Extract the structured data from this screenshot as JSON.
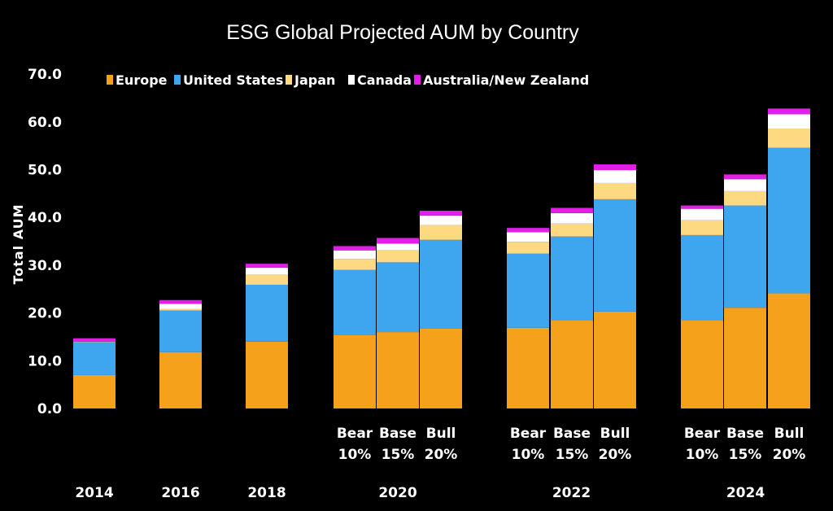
{
  "chart_data": {
    "type": "bar",
    "stacked": true,
    "title": "ESG Global Projected AUM by Country",
    "ylabel": "Total AUM",
    "ylim": [
      0,
      70
    ],
    "yticks": [
      "0.0",
      "10.0",
      "20.0",
      "30.0",
      "40.0",
      "50.0",
      "60.0",
      "70.0"
    ],
    "legend_position": "top-left",
    "categories": [
      {
        "label": "",
        "year": "2014"
      },
      {
        "label": "",
        "year": "2016"
      },
      {
        "label": "",
        "year": "2018"
      },
      {
        "label": "Bear\n10%",
        "year": "2020"
      },
      {
        "label": "Base\n15%",
        "year": "2020"
      },
      {
        "label": "Bull\n20%",
        "year": "2020"
      },
      {
        "label": "Bear\n10%",
        "year": "2022"
      },
      {
        "label": "Base\n15%",
        "year": "2022"
      },
      {
        "label": "Bull\n20%",
        "year": "2022"
      },
      {
        "label": "Bear\n10%",
        "year": "2024"
      },
      {
        "label": "Base\n15%",
        "year": "2024"
      },
      {
        "label": "Bull\n20%",
        "year": "2024"
      }
    ],
    "years": [
      "2014",
      "2016",
      "2018",
      "2020",
      "2022",
      "2024"
    ],
    "series": [
      {
        "name": "Europe",
        "color": "#f5a11c",
        "values": [
          7.0,
          11.8,
          14.0,
          15.4,
          16.0,
          16.7,
          16.9,
          18.5,
          20.3,
          18.5,
          21.1,
          24.1
        ]
      },
      {
        "name": "United States",
        "color": "#3ea6ee",
        "values": [
          6.9,
          8.7,
          11.9,
          13.6,
          14.6,
          18.6,
          15.5,
          17.5,
          23.5,
          17.8,
          21.4,
          30.5
        ]
      },
      {
        "name": "Japan",
        "color": "#fdda82",
        "values": [
          0.1,
          0.3,
          2.1,
          2.3,
          2.5,
          3.1,
          2.5,
          2.7,
          3.4,
          3.1,
          3.0,
          4.0
        ]
      },
      {
        "name": "Canada",
        "color": "#ffffff",
        "values": [
          0.0,
          1.1,
          1.5,
          1.8,
          1.4,
          2.0,
          2.0,
          2.2,
          2.7,
          2.4,
          2.5,
          3.0
        ]
      },
      {
        "name": "Australia/New Zealand",
        "color": "#e21ee8",
        "values": [
          0.7,
          0.8,
          0.8,
          0.9,
          1.2,
          1.0,
          0.9,
          1.1,
          1.2,
          0.7,
          1.0,
          1.2
        ]
      }
    ]
  }
}
